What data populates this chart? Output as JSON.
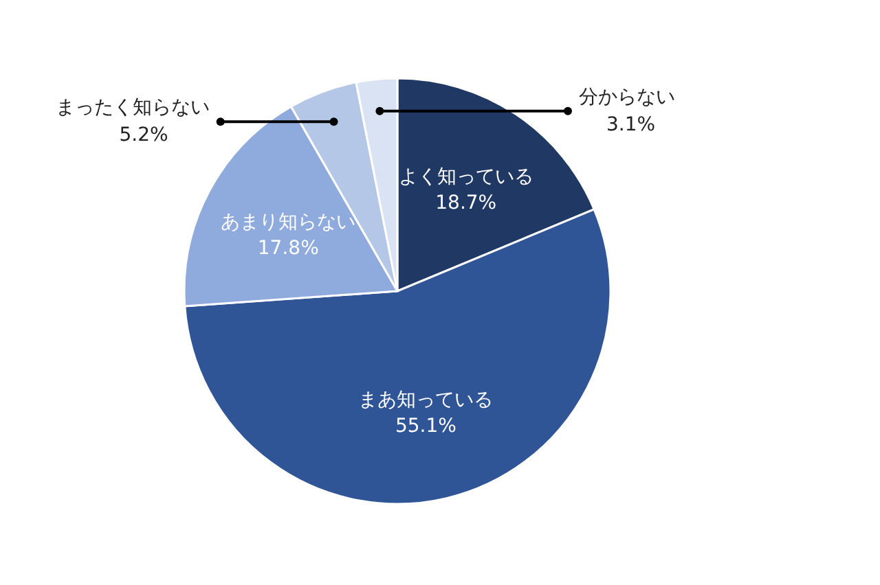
{
  "chart_data": {
    "type": "pie",
    "categories": [
      "よく知っている",
      "まあ知っている",
      "あまり知らない",
      "まったく知らない",
      "分からない"
    ],
    "values": [
      18.7,
      55.1,
      17.8,
      5.2,
      3.1
    ],
    "value_labels": [
      "18.7%",
      "55.1%",
      "17.8%",
      "5.2%",
      "3.1%"
    ],
    "colors": [
      "#1f3864",
      "#2f5597",
      "#8faadc",
      "#b4c7e7",
      "#dae3f3"
    ]
  }
}
